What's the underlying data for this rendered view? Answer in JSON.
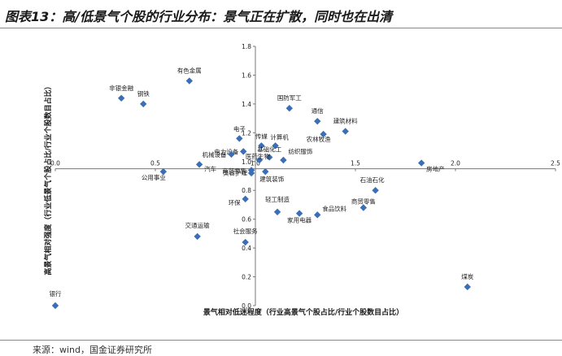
{
  "title": "图表13：高/低景气个股的行业分布：景气正在扩散，同时也在出清",
  "source": "来源：wind，国金证券研究所",
  "chart_data": {
    "type": "scatter",
    "title": "图表13：高/低景气个股的行业分布：景气正在扩散，同时也在出清",
    "xlabel": "景气相对低迷程度（行业高景气个股占比/行业个股数目占比）",
    "ylabel": "高景气相对强度（行业低景气个股占比/行业个股数目占比）",
    "xlim": [
      0,
      2.5
    ],
    "ylim": [
      0,
      1.8
    ],
    "x_ticks": [
      "0.0",
      "0.5",
      "1.0",
      "1.5",
      "2.0",
      "2.5"
    ],
    "y_ticks": [
      "0.0",
      "0.2",
      "0.4",
      "0.6",
      "0.8",
      "1.0",
      "1.2",
      "1.4",
      "1.6",
      "1.8"
    ],
    "grid": false,
    "marker_color": "#3a6fb5",
    "points": [
      {
        "name": "有色金属",
        "x": 0.67,
        "y": 1.56
      },
      {
        "name": "非银金融",
        "x": 0.33,
        "y": 1.44
      },
      {
        "name": "钢铁",
        "x": 0.44,
        "y": 1.4
      },
      {
        "name": "国防军工",
        "x": 1.17,
        "y": 1.37
      },
      {
        "name": "通信",
        "x": 1.31,
        "y": 1.28
      },
      {
        "name": "建筑材料",
        "x": 1.45,
        "y": 1.21
      },
      {
        "name": "农林牧渔",
        "x": 1.34,
        "y": 1.19
      },
      {
        "name": "电子",
        "x": 0.92,
        "y": 1.16
      },
      {
        "name": "传媒",
        "x": 1.03,
        "y": 1.11
      },
      {
        "name": "计算机",
        "x": 1.1,
        "y": 1.11
      },
      {
        "name": "电力设备",
        "x": 0.94,
        "y": 1.07
      },
      {
        "name": "机械设备",
        "x": 0.88,
        "y": 1.05
      },
      {
        "name": "基础化工",
        "x": 1.07,
        "y": 1.03
      },
      {
        "name": "医药生物",
        "x": 1.02,
        "y": 1.01
      },
      {
        "name": "纺织服饰",
        "x": 1.14,
        "y": 1.01
      },
      {
        "name": "汽车",
        "x": 0.72,
        "y": 0.98
      },
      {
        "name": "房地产",
        "x": 1.83,
        "y": 0.99
      },
      {
        "name": "公用事业",
        "x": 0.54,
        "y": 0.93
      },
      {
        "name": "美容护理",
        "x": 0.98,
        "y": 0.94
      },
      {
        "name": "商贸零售",
        "x": 0.98,
        "y": 0.92
      },
      {
        "name": "建筑装饰",
        "x": 1.05,
        "y": 0.93
      },
      {
        "name": "石油石化",
        "x": 1.6,
        "y": 0.8
      },
      {
        "name": "环保",
        "x": 0.95,
        "y": 0.74
      },
      {
        "name": "轻工制造",
        "x": 1.11,
        "y": 0.65
      },
      {
        "name": "家用电器",
        "x": 1.22,
        "y": 0.64
      },
      {
        "name": "食品饮料",
        "x": 1.31,
        "y": 0.63
      },
      {
        "name": "商贸零售",
        "x": 1.54,
        "y": 0.68
      },
      {
        "name": "交通运输",
        "x": 0.71,
        "y": 0.48
      },
      {
        "name": "社会服务",
        "x": 0.95,
        "y": 0.44
      },
      {
        "name": "煤炭",
        "x": 2.06,
        "y": 0.13
      },
      {
        "name": "银行",
        "x": 0.0,
        "y": 0.0
      }
    ]
  }
}
